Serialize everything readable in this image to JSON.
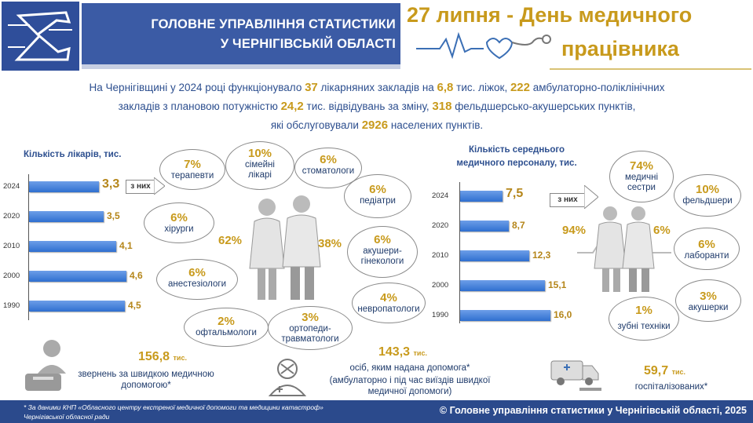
{
  "header": {
    "org_line1": "ГОЛОВНЕ УПРАВЛІННЯ СТАТИСТИКИ",
    "org_line2": "У ЧЕРНІГІВСЬКІЙ ОБЛАСТІ",
    "title_line1": "27 липня - День медичного",
    "title_line2": "працівника"
  },
  "intro": {
    "p1": "На Чернігівщині у 2024 році функціонувало ",
    "n_hospitals": "37",
    "p2": " лікарняних закладів на ",
    "n_beds": "6,8",
    "p3": " тис. ліжок, ",
    "n_ambul": "222",
    "p4": " амбулаторно-поліклінічних",
    "p5": "закладів з плановою потужністю ",
    "n_capacity": "24,2",
    "p6": " тис. відвідувань за зміну,  ",
    "n_fap": "318",
    "p7": " фельдшерсько-акушерських пунктів,",
    "p8": "які обслуговували ",
    "n_settlements": "2926",
    "p9": " населених пунктів."
  },
  "chart_data": [
    {
      "type": "bar",
      "title": "Кількість лікарів, тис.",
      "categories": [
        "2024",
        "2020",
        "2010",
        "2000",
        "1990"
      ],
      "values": [
        3.3,
        3.5,
        4.1,
        4.6,
        4.5
      ],
      "value_labels": [
        "3,3",
        "3,5",
        "4,1",
        "4,6",
        "4,5"
      ],
      "xlim": [
        0,
        5
      ]
    },
    {
      "type": "bar",
      "title_line1": "Кількість середнього",
      "title_line2": "медичного персоналу, тис.",
      "categories": [
        "2024",
        "2020",
        "2010",
        "2000",
        "1990"
      ],
      "values": [
        7.5,
        8.7,
        12.3,
        15.1,
        16.0
      ],
      "value_labels": [
        "7,5",
        "8,7",
        "12,3",
        "15,1",
        "16,0"
      ],
      "xlim": [
        0,
        17
      ]
    }
  ],
  "doctors": {
    "arrow_label": "з них",
    "women_pct": "62%",
    "men_pct": "38%",
    "specialties": [
      {
        "pct": "7%",
        "label": "терапевти"
      },
      {
        "pct": "10%",
        "label": "сімейні лікарі"
      },
      {
        "pct": "6%",
        "label": "стоматологи"
      },
      {
        "pct": "6%",
        "label": "педіатри"
      },
      {
        "pct": "6%",
        "label": "хірурги"
      },
      {
        "pct": "6%",
        "label": "акушери-гінекологи"
      },
      {
        "pct": "6%",
        "label": "анестезіологи"
      },
      {
        "pct": "4%",
        "label": "невропатологи"
      },
      {
        "pct": "2%",
        "label": "офтальмологи"
      },
      {
        "pct": "3%",
        "label": "ортопеди-травматологи"
      }
    ]
  },
  "nurses": {
    "arrow_label": "з них",
    "women_pct": "94%",
    "men_pct": "6%",
    "specialties": [
      {
        "pct": "74%",
        "label": "медичні сестри"
      },
      {
        "pct": "10%",
        "label": "фельдшери"
      },
      {
        "pct": "6%",
        "label": "лаборанти"
      },
      {
        "pct": "3%",
        "label": "акушерки"
      },
      {
        "pct": "1%",
        "label": "зубні техніки"
      }
    ]
  },
  "bottom": {
    "calls_value": "156,8",
    "calls_unit": "тис.",
    "calls_text": "звернень за швидкою медичною допомогою*",
    "aid_value": "143,3",
    "aid_unit": "тис.",
    "aid_text1": "осіб, яким надана допомога*",
    "aid_text2": "(амбулаторно і під час виїздів швидкої медичної допомоги)",
    "hosp_value": "59,7",
    "hosp_unit": "тис.",
    "hosp_text": "госпіталізованих*"
  },
  "footer": {
    "note_line1": "* За даними КНП «Обласного центру екстреної медичної допомоги та медицини катастроф»",
    "note_line2": "Чернігівської обласної ради",
    "copyright": "© Головне управління статистики у Чернігівській області, 2025"
  },
  "colors": {
    "blue": "#3b5ba5",
    "gold": "#c89a1c",
    "bar": "#3d7ad8"
  }
}
